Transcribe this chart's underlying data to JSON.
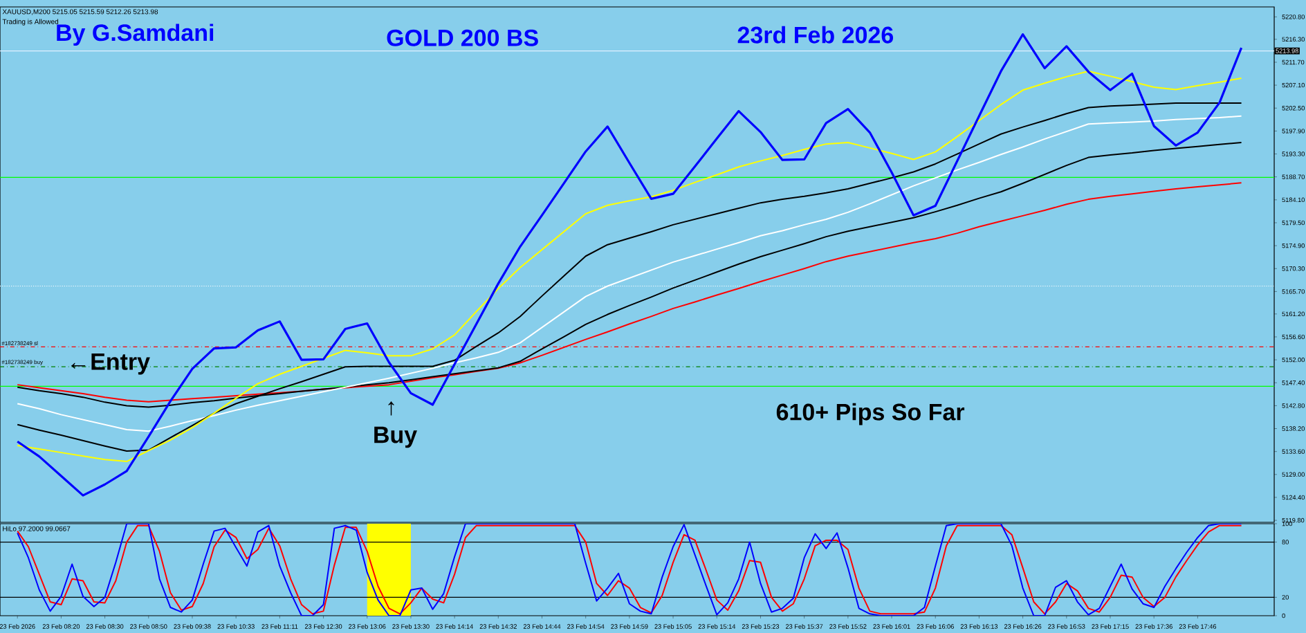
{
  "chart_data": [
    {
      "type": "line",
      "title": "XAUUSD,M200  5215.05 5215.59 5212.26 5213.98",
      "subtitle": "Trading is Allowed",
      "annotations": [
        "By G.Samdani",
        "GOLD 200 BS",
        "23rd Feb 2026",
        "610+ Pips So Far",
        "←Entry",
        "↑",
        "Buy"
      ],
      "categories": [
        null,
        null,
        null,
        null,
        null,
        null,
        null,
        null,
        null,
        null,
        null,
        null,
        null,
        null,
        null,
        null,
        null,
        null,
        null,
        null,
        null,
        null,
        null,
        null,
        null,
        null,
        null,
        null,
        null,
        null,
        null,
        null,
        null,
        null,
        null,
        null,
        null,
        null,
        null,
        null,
        null,
        null,
        null,
        null,
        null,
        null,
        null,
        null,
        null,
        null,
        null,
        null,
        null,
        null,
        null,
        null,
        null,
        null
      ],
      "ylim": [
        5119.4,
        5222.8
      ],
      "tick_labels": "y",
      "yticks": [
        {
          "value": 5220.8,
          "label": "5220.80"
        },
        {
          "value": 5216.3,
          "label": "5216.30"
        },
        {
          "value": 5211.7,
          "label": "5211.70"
        },
        {
          "value": 5207.1,
          "label": "5207.10"
        },
        {
          "value": 5202.5,
          "label": "5202.50"
        },
        {
          "value": 5197.9,
          "label": "5197.90"
        },
        {
          "value": 5193.3,
          "label": "5193.30"
        },
        {
          "value": 5188.7,
          "label": "5188.70"
        },
        {
          "value": 5184.1,
          "label": "5184.10"
        },
        {
          "value": 5179.5,
          "label": "5179.50"
        },
        {
          "value": 5174.9,
          "label": "5174.90"
        },
        {
          "value": 5170.3,
          "label": "5170.30"
        },
        {
          "value": 5165.7,
          "label": "5165.70"
        },
        {
          "value": 5161.2,
          "label": "5161.20"
        },
        {
          "value": 5156.6,
          "label": "5156.60"
        },
        {
          "value": 5152.0,
          "label": "5152.00"
        },
        {
          "value": 5147.4,
          "label": "5147.40"
        },
        {
          "value": 5142.8,
          "label": "5142.80"
        },
        {
          "value": 5138.2,
          "label": "5138.20"
        },
        {
          "value": 5133.6,
          "label": "5133.60"
        },
        {
          "value": 5129.0,
          "label": "5129.00"
        },
        {
          "value": 5124.4,
          "label": "5124.40"
        },
        {
          "value": 5119.8,
          "label": "5119.80"
        }
      ],
      "ref_lines": [
        {
          "axis": "y",
          "value": 5213.98,
          "label": "5213.98",
          "color": "#e0f0ff"
        },
        {
          "axis": "y",
          "value": 5154.6,
          "label": "#182738249 sl",
          "color": "#ff0000",
          "line_style": "dashed"
        },
        {
          "axis": "y",
          "value": 5150.6,
          "label": "#182738249 buy",
          "color": "#008000",
          "line_style": "dashed"
        },
        {
          "axis": "y",
          "value": 5188.6,
          "color": "#00ff00"
        },
        {
          "axis": "y",
          "value": 5146.7,
          "color": "#00ff00"
        },
        {
          "axis": "y",
          "value": 5166.8,
          "color": "#ffffff",
          "line_style": "dotted"
        }
      ],
      "series": [
        {
          "color": "#ff0000",
          "values": [
            5147.0,
            5146.4,
            5145.8,
            5145.2,
            5144.5,
            5143.9,
            5143.6,
            5143.9,
            5144.2,
            5144.5,
            5144.8,
            5145.1,
            5145.4,
            5145.7,
            5146.1,
            5146.4,
            5146.7,
            5147.0,
            5147.7,
            5148.4,
            5149.0,
            5149.7,
            5150.3,
            5151.4,
            5152.9,
            5154.5,
            5156.1,
            5157.6,
            5159.2,
            5160.7,
            5162.3,
            5163.6,
            5165.0,
            5166.3,
            5167.7,
            5169.0,
            5170.3,
            5171.7,
            5172.8,
            5173.7,
            5174.6,
            5175.5,
            5176.3,
            5177.4,
            5178.7,
            5179.8,
            5180.9,
            5182.0,
            5183.2,
            5184.2,
            5184.8,
            5185.3,
            5185.8,
            5186.3,
            5186.7,
            5187.1,
            5187.5,
            null
          ]
        },
        {
          "color": "#000000",
          "values": [
            5146.5,
            5145.8,
            5145.2,
            5144.5,
            5143.5,
            5142.8,
            5142.5,
            5142.9,
            5143.4,
            5143.8,
            5144.3,
            5144.8,
            5145.2,
            5145.7,
            5146.1,
            5146.5,
            5147.0,
            5147.4,
            5148.0,
            5148.6,
            5149.2,
            5149.8,
            5150.4,
            5151.7,
            5154.2,
            5156.6,
            5159.1,
            5161.1,
            5162.9,
            5164.6,
            5166.4,
            5168.0,
            5169.6,
            5171.2,
            5172.7,
            5174.0,
            5175.3,
            5176.7,
            5177.8,
            5178.7,
            5179.6,
            5180.5,
            5181.7,
            5183.0,
            5184.4,
            5185.7,
            5187.4,
            5189.2,
            5191.0,
            5192.6,
            5193.1,
            5193.5,
            5194.0,
            5194.4,
            5194.8,
            5195.2,
            5195.6,
            null
          ]
        },
        {
          "color": "#ffffff",
          "values": [
            5143.2,
            5142.2,
            5141.0,
            5140.0,
            5139.0,
            5138.0,
            5137.7,
            5138.7,
            5139.8,
            5140.8,
            5141.9,
            5142.9,
            5143.8,
            5144.7,
            5145.6,
            5146.5,
            5147.4,
            5148.3,
            5149.3,
            5150.3,
            5151.4,
            5152.4,
            5153.5,
            5155.4,
            5158.5,
            5161.6,
            5164.7,
            5166.8,
            5168.4,
            5170.0,
            5171.6,
            5172.9,
            5174.2,
            5175.5,
            5176.9,
            5177.9,
            5179.1,
            5180.2,
            5181.6,
            5183.3,
            5185.1,
            5186.9,
            5188.5,
            5190.1,
            5191.6,
            5193.2,
            5194.7,
            5196.3,
            5197.8,
            5199.3,
            5199.5,
            5199.7,
            5199.9,
            5200.2,
            5200.4,
            5200.6,
            5200.9,
            null
          ]
        },
        {
          "color": "#000000",
          "values": [
            5139.0,
            5137.9,
            5136.9,
            5135.8,
            5134.7,
            5133.7,
            5133.9,
            5136.4,
            5138.8,
            5141.3,
            5143.2,
            5144.7,
            5146.2,
            5147.6,
            5149.1,
            5150.6,
            5150.7,
            5150.7,
            5150.7,
            5150.7,
            5151.9,
            5154.7,
            5157.4,
            5160.7,
            5164.8,
            5168.8,
            5172.8,
            5175.1,
            5176.4,
            5177.7,
            5179.1,
            5180.2,
            5181.3,
            5182.4,
            5183.5,
            5184.2,
            5184.8,
            5185.5,
            5186.3,
            5187.4,
            5188.5,
            5189.7,
            5191.3,
            5193.3,
            5195.3,
            5197.3,
            5198.7,
            5200.0,
            5201.4,
            5202.6,
            5202.9,
            5203.1,
            5203.3,
            5203.5,
            5203.5,
            5203.5,
            5203.5,
            null
          ]
        },
        {
          "color": "#ffff00",
          "values": [
            5134.8,
            5134.1,
            5133.4,
            5132.7,
            5132.0,
            5131.6,
            5133.8,
            5135.9,
            5138.4,
            5141.3,
            5144.3,
            5147.2,
            5149.1,
            5150.7,
            5152.3,
            5153.9,
            5153.4,
            5152.8,
            5152.8,
            5154.2,
            5157.0,
            5161.7,
            5166.3,
            5170.5,
            5174.1,
            5177.7,
            5181.3,
            5183.0,
            5183.9,
            5184.7,
            5186.0,
            5187.6,
            5189.1,
            5190.7,
            5191.9,
            5193.0,
            5194.2,
            5195.3,
            5195.6,
            5194.5,
            5193.4,
            5192.2,
            5193.7,
            5196.8,
            5200.0,
            5203.2,
            5206.1,
            5207.5,
            5208.8,
            5209.9,
            5208.9,
            5207.8,
            5206.7,
            5206.2,
            5207.0,
            5207.7,
            5208.5,
            null
          ]
        },
        {
          "color": "#0000ff",
          "values": [
            5135.6,
            5132.6,
            5128.7,
            5124.8,
            5127.0,
            5129.7,
            5136.6,
            5143.7,
            5150.2,
            5154.3,
            5154.5,
            5157.9,
            5159.7,
            5152.0,
            5152.1,
            5158.2,
            5159.3,
            5151.5,
            5145.3,
            5143.0,
            5151.1,
            5159.2,
            5167.3,
            5174.7,
            5181.0,
            5187.4,
            5193.8,
            5198.8,
            5191.5,
            5184.3,
            5185.3,
            5190.8,
            5196.4,
            5201.9,
            5197.7,
            5192.1,
            5192.2,
            5199.5,
            5202.3,
            5197.6,
            5189.6,
            5181.0,
            5182.9,
            5191.9,
            5200.9,
            5209.9,
            5217.3,
            5210.5,
            5214.9,
            5209.8,
            5206.1,
            5209.4,
            5198.9,
            5195.0,
            5197.6,
            5203.6,
            5214.6,
            null
          ]
        }
      ]
    },
    {
      "type": "line",
      "title": "HiLo 97.2000 99.0667",
      "categories": [
        "23 Feb 2026",
        null,
        null,
        null,
        "23 Feb 08:20",
        null,
        null,
        null,
        "23 Feb 08:30",
        null,
        null,
        null,
        "23 Feb 08:50",
        null,
        null,
        null,
        "23 Feb 09:38",
        null,
        null,
        null,
        "23 Feb 10:33",
        null,
        null,
        null,
        "23 Feb 11:11",
        null,
        null,
        null,
        "23 Feb 12:30",
        null,
        null,
        null,
        "23 Feb 13:06",
        null,
        null,
        null,
        "23 Feb 13:30",
        null,
        null,
        null,
        "23 Feb 14:14",
        null,
        null,
        null,
        "23 Feb 14:32",
        null,
        null,
        null,
        "23 Feb 14:44",
        null,
        null,
        null,
        "23 Feb 14:54",
        null,
        null,
        null,
        "23 Feb 14:59",
        null,
        null,
        null,
        "23 Feb 15:05",
        null,
        null,
        null,
        "23 Feb 15:14",
        null,
        null,
        null,
        "23 Feb 15:23",
        null,
        null,
        null,
        "23 Feb 15:37",
        null,
        null,
        null,
        "23 Feb 15:52",
        null,
        null,
        null,
        "23 Feb 16:01",
        null,
        null,
        null,
        "23 Feb 16:06",
        null,
        null,
        null,
        "23 Feb 16:13",
        null,
        null,
        null,
        "23 Feb 16:26",
        null,
        null,
        null,
        "23 Feb 16:53",
        null,
        null,
        null,
        "23 Feb 17:15",
        null,
        null,
        null,
        "23 Feb 17:36",
        null,
        null,
        null,
        "23 Feb 17:46",
        null,
        null,
        null,
        null,
        null,
        null
      ],
      "ylim": [
        0,
        100
      ],
      "yticks": [
        0,
        20,
        80,
        100
      ],
      "ref_lines": [
        {
          "axis": "y",
          "value": 80,
          "color": "#000000"
        },
        {
          "axis": "y",
          "value": 20,
          "color": "#000000"
        }
      ],
      "bands": [
        {
          "axis": "x",
          "from": "23 Feb 13:06",
          "to": "23 Feb 13:30",
          "color": "#ffff00"
        }
      ],
      "series": [
        {
          "color": "#ff0000",
          "values": [
            92,
            75,
            45,
            15,
            12,
            40,
            38,
            15,
            14,
            38,
            80,
            98,
            98,
            70,
            25,
            6,
            10,
            35,
            75,
            93,
            85,
            62,
            72,
            95,
            76,
            40,
            12,
            2,
            5,
            55,
            96,
            96,
            70,
            32,
            8,
            2,
            14,
            30,
            18,
            14,
            45,
            85,
            98,
            98,
            98,
            98,
            98,
            98,
            98,
            98,
            98,
            98,
            80,
            35,
            22,
            38,
            30,
            9,
            3,
            22,
            58,
            88,
            82,
            50,
            17,
            6,
            27,
            60,
            58,
            20,
            5,
            13,
            40,
            76,
            82,
            82,
            72,
            30,
            5,
            2,
            2,
            2,
            2,
            4,
            30,
            76,
            98,
            98,
            98,
            98,
            98,
            88,
            52,
            15,
            2,
            15,
            35,
            27,
            8,
            4,
            20,
            44,
            42,
            20,
            10,
            20,
            42,
            60,
            77,
            91,
            98,
            98,
            98,
            null,
            null
          ]
        },
        {
          "color": "#0000ff",
          "values": [
            90,
            63,
            28,
            5,
            21,
            56,
            21,
            10,
            20,
            58,
            100,
            100,
            100,
            40,
            9,
            4,
            17,
            56,
            92,
            95,
            74,
            54,
            91,
            98,
            54,
            25,
            0,
            0,
            12,
            95,
            98,
            93,
            47,
            17,
            0,
            0,
            28,
            30,
            7,
            24,
            64,
            100,
            100,
            100,
            100,
            100,
            100,
            100,
            100,
            100,
            100,
            100,
            57,
            16,
            30,
            46,
            13,
            5,
            2,
            42,
            75,
            99,
            66,
            33,
            1,
            14,
            40,
            80,
            35,
            4,
            8,
            19,
            63,
            89,
            73,
            90,
            52,
            8,
            2,
            0,
            0,
            0,
            0,
            9,
            54,
            98,
            100,
            100,
            100,
            100,
            100,
            76,
            30,
            0,
            0,
            31,
            38,
            15,
            1,
            8,
            32,
            56,
            29,
            13,
            9,
            32,
            51,
            69,
            85,
            98,
            100,
            100,
            100,
            null,
            null
          ]
        }
      ]
    }
  ]
}
